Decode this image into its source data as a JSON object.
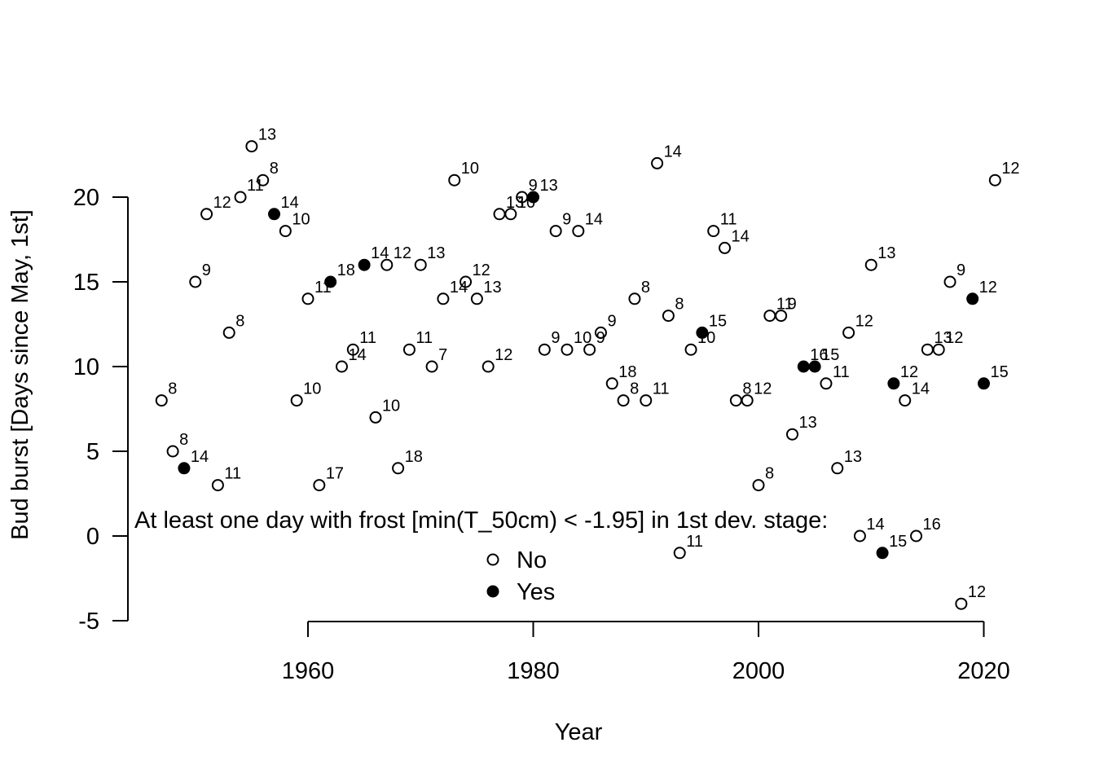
{
  "chart_data": {
    "type": "scatter",
    "xlabel": "Year",
    "ylabel": "Bud burst [Days since May, 1st]",
    "xlim": [
      1944,
      2022
    ],
    "ylim": [
      -5,
      23
    ],
    "xticks": [
      1960,
      1980,
      2000,
      2020
    ],
    "yticks": [
      -5,
      0,
      5,
      10,
      15,
      20
    ],
    "legend": {
      "title": "At least one day with frost [min(T_50cm) < -1.95] in 1st dev. stage:",
      "position": "bottom-center",
      "entries": [
        {
          "label": "No",
          "marker": "open-circle"
        },
        {
          "label": "Yes",
          "marker": "filled-circle"
        }
      ]
    },
    "series": [
      {
        "name": "No",
        "marker": "open-circle",
        "points": [
          {
            "x": 1947,
            "y": 8,
            "label": "8"
          },
          {
            "x": 1948,
            "y": 5,
            "label": "8"
          },
          {
            "x": 1950,
            "y": 15,
            "label": "9"
          },
          {
            "x": 1951,
            "y": 19,
            "label": "12"
          },
          {
            "x": 1952,
            "y": 3,
            "label": "11"
          },
          {
            "x": 1953,
            "y": 12,
            "label": "8"
          },
          {
            "x": 1954,
            "y": 20,
            "label": "11"
          },
          {
            "x": 1955,
            "y": 23,
            "label": "13"
          },
          {
            "x": 1956,
            "y": 21,
            "label": "8"
          },
          {
            "x": 1958,
            "y": 18,
            "label": "10"
          },
          {
            "x": 1959,
            "y": 8,
            "label": "10"
          },
          {
            "x": 1960,
            "y": 14,
            "label": "11"
          },
          {
            "x": 1961,
            "y": 3,
            "label": "17"
          },
          {
            "x": 1963,
            "y": 10,
            "label": "14"
          },
          {
            "x": 1964,
            "y": 11,
            "label": "11"
          },
          {
            "x": 1966,
            "y": 7,
            "label": "10"
          },
          {
            "x": 1967,
            "y": 16,
            "label": "12"
          },
          {
            "x": 1968,
            "y": 4,
            "label": "18"
          },
          {
            "x": 1969,
            "y": 11,
            "label": "11"
          },
          {
            "x": 1970,
            "y": 16,
            "label": "13"
          },
          {
            "x": 1971,
            "y": 10,
            "label": "7"
          },
          {
            "x": 1972,
            "y": 14,
            "label": "14"
          },
          {
            "x": 1973,
            "y": 21,
            "label": "10"
          },
          {
            "x": 1974,
            "y": 15,
            "label": "12"
          },
          {
            "x": 1975,
            "y": 14,
            "label": "13"
          },
          {
            "x": 1976,
            "y": 10,
            "label": "12"
          },
          {
            "x": 1977,
            "y": 19,
            "label": "13"
          },
          {
            "x": 1978,
            "y": 19,
            "label": "10"
          },
          {
            "x": 1979,
            "y": 20,
            "label": "9"
          },
          {
            "x": 1981,
            "y": 11,
            "label": "9"
          },
          {
            "x": 1982,
            "y": 18,
            "label": "9"
          },
          {
            "x": 1983,
            "y": 11,
            "label": "10"
          },
          {
            "x": 1984,
            "y": 18,
            "label": "14"
          },
          {
            "x": 1985,
            "y": 11,
            "label": "9"
          },
          {
            "x": 1986,
            "y": 12,
            "label": "9"
          },
          {
            "x": 1987,
            "y": 9,
            "label": "18"
          },
          {
            "x": 1988,
            "y": 8,
            "label": "8"
          },
          {
            "x": 1989,
            "y": 14,
            "label": "8"
          },
          {
            "x": 1990,
            "y": 8,
            "label": "11"
          },
          {
            "x": 1991,
            "y": 22,
            "label": "14"
          },
          {
            "x": 1992,
            "y": 13,
            "label": "8"
          },
          {
            "x": 1993,
            "y": -1,
            "label": "11"
          },
          {
            "x": 1994,
            "y": 11,
            "label": "10"
          },
          {
            "x": 1996,
            "y": 18,
            "label": "11"
          },
          {
            "x": 1997,
            "y": 17,
            "label": "14"
          },
          {
            "x": 1998,
            "y": 8,
            "label": "8"
          },
          {
            "x": 1999,
            "y": 8,
            "label": "12"
          },
          {
            "x": 2000,
            "y": 3,
            "label": "8"
          },
          {
            "x": 2001,
            "y": 13,
            "label": "11"
          },
          {
            "x": 2002,
            "y": 13,
            "label": "9"
          },
          {
            "x": 2003,
            "y": 6,
            "label": "13"
          },
          {
            "x": 2006,
            "y": 9,
            "label": "11"
          },
          {
            "x": 2007,
            "y": 4,
            "label": "13"
          },
          {
            "x": 2008,
            "y": 12,
            "label": "12"
          },
          {
            "x": 2009,
            "y": 0,
            "label": "14"
          },
          {
            "x": 2010,
            "y": 16,
            "label": "13"
          },
          {
            "x": 2013,
            "y": 8,
            "label": "14"
          },
          {
            "x": 2014,
            "y": 0,
            "label": "16"
          },
          {
            "x": 2015,
            "y": 11,
            "label": "13"
          },
          {
            "x": 2016,
            "y": 11,
            "label": "12"
          },
          {
            "x": 2017,
            "y": 15,
            "label": "9"
          },
          {
            "x": 2018,
            "y": -4,
            "label": "12"
          },
          {
            "x": 2021,
            "y": 21,
            "label": "12"
          }
        ]
      },
      {
        "name": "Yes",
        "marker": "filled-circle",
        "points": [
          {
            "x": 1949,
            "y": 4,
            "label": "14"
          },
          {
            "x": 1957,
            "y": 19,
            "label": "14"
          },
          {
            "x": 1962,
            "y": 15,
            "label": "18"
          },
          {
            "x": 1965,
            "y": 16,
            "label": "14"
          },
          {
            "x": 1980,
            "y": 20,
            "label": "13"
          },
          {
            "x": 1995,
            "y": 12,
            "label": "15"
          },
          {
            "x": 2004,
            "y": 10,
            "label": "16"
          },
          {
            "x": 2005,
            "y": 10,
            "label": "15"
          },
          {
            "x": 2011,
            "y": -1,
            "label": "15"
          },
          {
            "x": 2012,
            "y": 9,
            "label": "12"
          },
          {
            "x": 2019,
            "y": 14,
            "label": "12"
          },
          {
            "x": 2020,
            "y": 9,
            "label": "15"
          }
        ]
      }
    ]
  }
}
